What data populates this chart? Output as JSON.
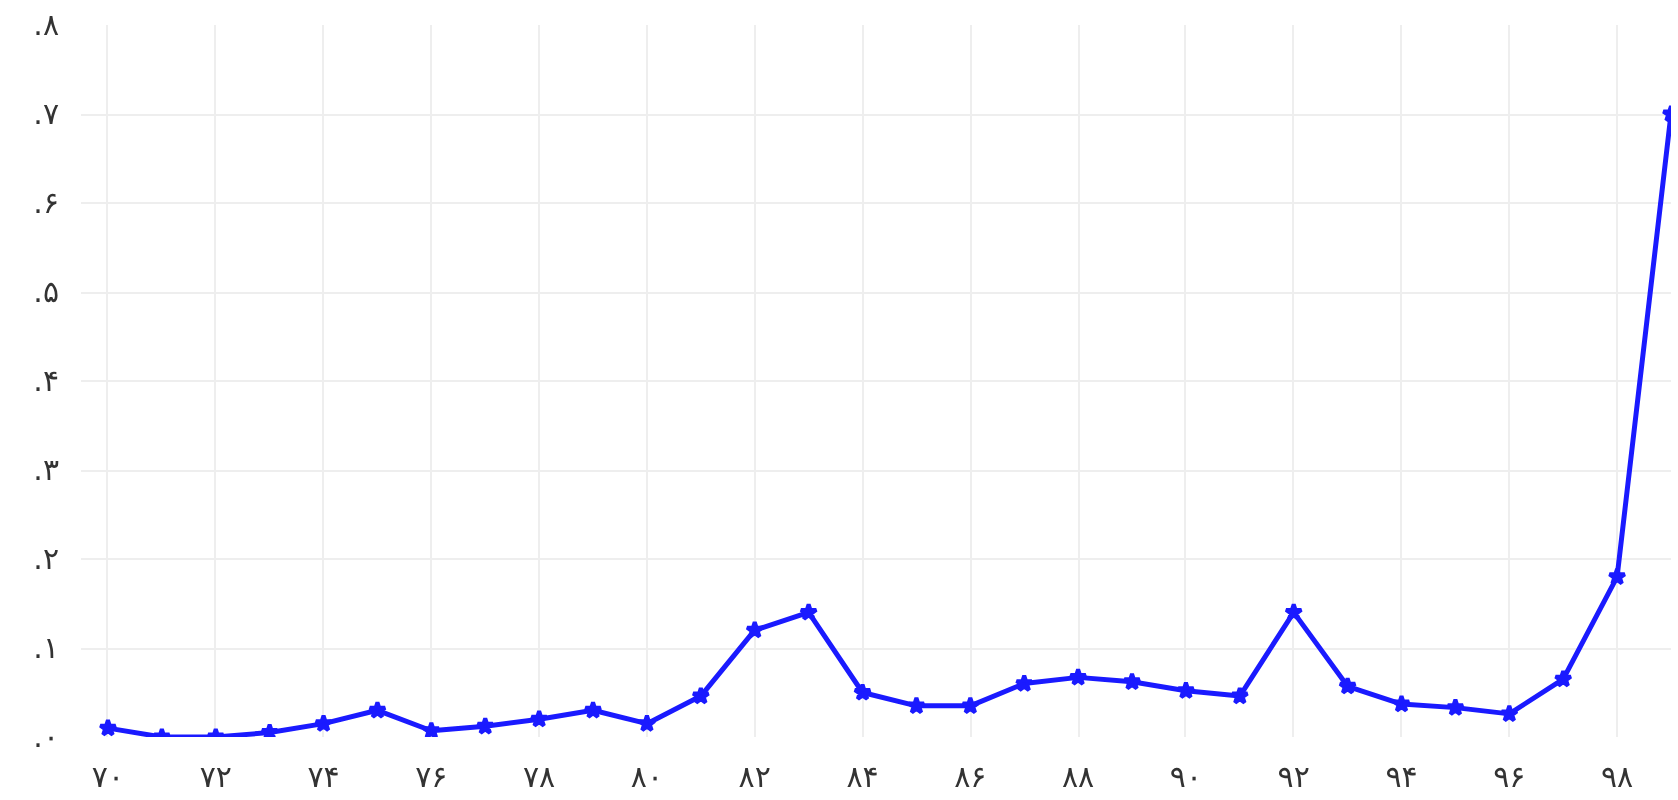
{
  "chart_data": {
    "type": "line",
    "x": [
      70,
      71,
      72,
      73,
      74,
      75,
      76,
      77,
      78,
      79,
      80,
      81,
      82,
      83,
      84,
      85,
      86,
      87,
      88,
      89,
      90,
      91,
      92,
      93,
      94,
      95,
      96,
      97,
      98,
      99
    ],
    "series": [
      {
        "color": "#1a1aff",
        "values": [
          0.01,
          0.0,
          0.0,
          0.005,
          0.015,
          0.03,
          0.007,
          0.012,
          0.02,
          0.03,
          0.015,
          0.046,
          0.12,
          0.14,
          0.05,
          0.035,
          0.035,
          0.06,
          0.067,
          0.062,
          0.052,
          0.046,
          0.14,
          0.057,
          0.037,
          0.033,
          0.026,
          0.065,
          0.18,
          0.7
        ]
      }
    ],
    "xlim": [
      69.5,
      99
    ],
    "xticks": [
      {
        "value": 70,
        "label": "۷۰"
      },
      {
        "value": 72,
        "label": "۷۲"
      },
      {
        "value": 74,
        "label": "۷۴"
      },
      {
        "value": 76,
        "label": "۷۶"
      },
      {
        "value": 78,
        "label": "۷۸"
      },
      {
        "value": 80,
        "label": "۸۰"
      },
      {
        "value": 82,
        "label": "۸۲"
      },
      {
        "value": 84,
        "label": "۸۴"
      },
      {
        "value": 86,
        "label": "۸۶"
      },
      {
        "value": 88,
        "label": "۸۸"
      },
      {
        "value": 90,
        "label": "۹۰"
      },
      {
        "value": 92,
        "label": "۹۲"
      },
      {
        "value": 94,
        "label": "۹۴"
      },
      {
        "value": 96,
        "label": "۹۶"
      },
      {
        "value": 98,
        "label": "۹۸"
      }
    ],
    "ylim": [
      0,
      0.8
    ],
    "yticks": [
      {
        "value": 0,
        "label": ".۰"
      },
      {
        "value": 0.1,
        "label": ".۱"
      },
      {
        "value": 0.2,
        "label": ".۲"
      },
      {
        "value": 0.3,
        "label": ".۳"
      },
      {
        "value": 0.4,
        "label": ".۴"
      },
      {
        "value": 0.5,
        "label": ".۵"
      },
      {
        "value": 0.6,
        "label": ".۶"
      },
      {
        "value": 0.7,
        "label": ".۷"
      },
      {
        "value": 0.8,
        "label": ".۸"
      }
    ],
    "grid": true,
    "marker": "star",
    "line_style": "solid"
  }
}
